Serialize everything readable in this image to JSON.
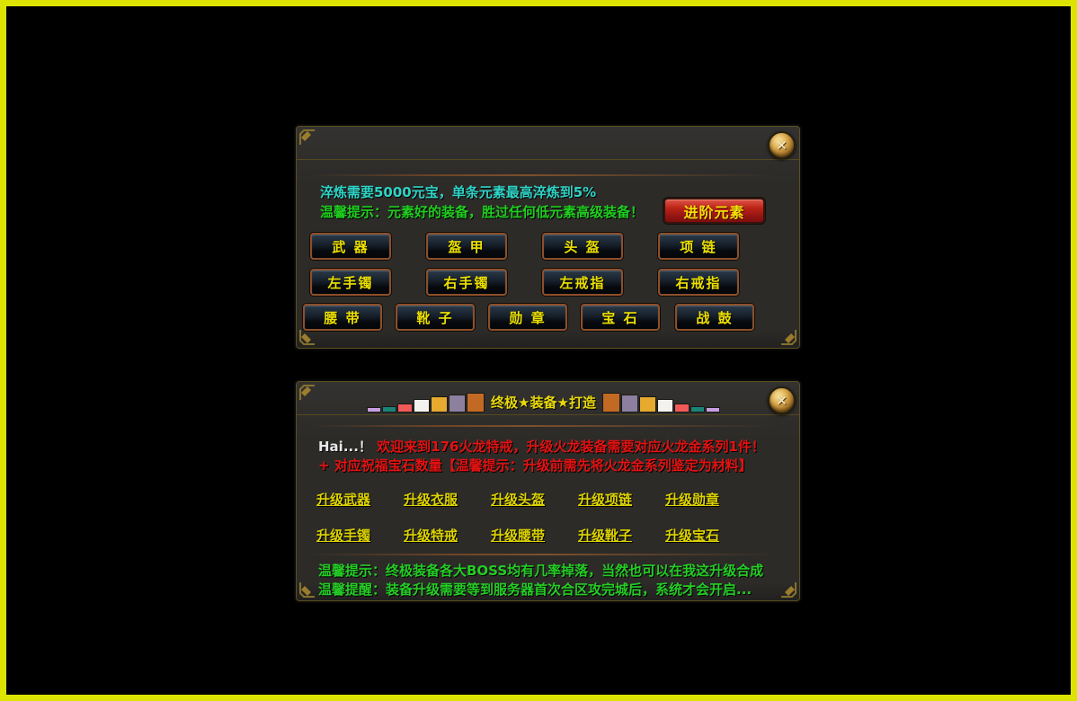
{
  "app": {
    "frame_border_color": "#dde300",
    "close_glyph": "✕"
  },
  "refine_panel": {
    "info_cyan": "淬炼需要5000元宝，单条元素最高淬炼到5%",
    "tip_green": "温馨提示：元素好的装备，胜过任何低元素高级装备！",
    "advance_button": "进阶元素",
    "slots_row1": [
      "武 器",
      "盔 甲",
      "头 盔",
      "项 链"
    ],
    "slots_row2": [
      "左手镯",
      "右手镯",
      "左戒指",
      "右戒指"
    ],
    "slots_row3": [
      "腰 带",
      "靴 子",
      "勋 章",
      "宝 石",
      "战 鼓"
    ],
    "colors": {
      "info_text": "#2fd3c6",
      "tip_text": "#1fce1f",
      "slot_button_text": "#ece000",
      "advance_button_bg": "#b01818",
      "advance_button_text": "#f2df08"
    }
  },
  "upgrade_panel": {
    "title": "终极★装备★打造",
    "title_decor_blocks": [
      {
        "color": "#c79fe0",
        "w": 14,
        "h": 4
      },
      {
        "color": "#1a8577",
        "w": 14,
        "h": 5
      },
      {
        "color": "#f25a5a",
        "w": 15,
        "h": 8
      },
      {
        "color": "#f4f2ef",
        "w": 16,
        "h": 13
      },
      {
        "color": "#e5aa2e",
        "w": 17,
        "h": 16
      },
      {
        "color": "#8d7f9e",
        "w": 17,
        "h": 18
      },
      {
        "color": "#c26a24",
        "w": 18,
        "h": 20
      }
    ],
    "welcome_prefix": "Hai...！",
    "welcome_red": "欢迎来到176火龙特戒，升级火龙装备需要对应火龙金系列1件！",
    "welcome_line2": "+ 对应祝福宝石数量【温馨提示：升级前需先将火龙金系列鉴定为材料】",
    "links_row1": [
      "升级武器",
      "升级衣服",
      "升级头盔",
      "升级项链",
      "升级勋章"
    ],
    "links_row2": [
      "升级手镯",
      "升级特戒",
      "升级腰带",
      "升级靴子",
      "升级宝石"
    ],
    "tip_line1": "温馨提示：终极装备各大BOSS均有几率掉落，当然也可以在我这升级合成",
    "tip_line2": "温馨提醒：装备升级需要等到服务器首次合区攻完城后，系统才会开启...",
    "colors": {
      "red_text": "#e31212",
      "green_text": "#25cc25",
      "link_text": "#ddd300",
      "title_text": "#e8d90a",
      "prefix_text": "#e8e8e8"
    }
  }
}
